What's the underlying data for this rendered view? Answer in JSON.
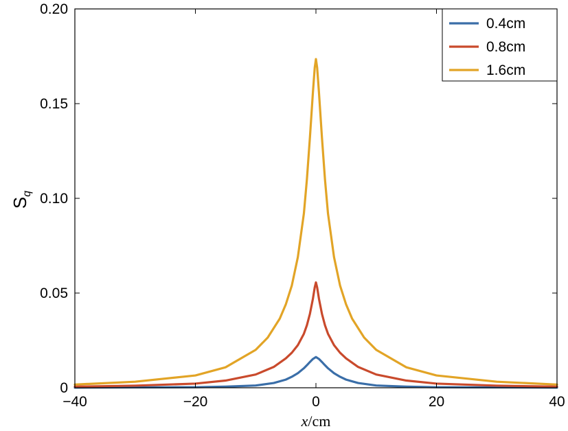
{
  "chart_data": {
    "type": "line",
    "title": "",
    "xlabel": {
      "var": "x",
      "rest": "/cm"
    },
    "ylabel": {
      "main": "S",
      "sub": "q"
    },
    "xlim": [
      -40,
      40
    ],
    "ylim": [
      0,
      0.2
    ],
    "xticks": [
      -40,
      -20,
      0,
      20,
      40
    ],
    "xtick_labels": [
      "−40",
      "−20",
      "0",
      "20",
      "40"
    ],
    "yticks": [
      0,
      0.05,
      0.1,
      0.15,
      0.2
    ],
    "ytick_labels": [
      "0",
      "0.05",
      "0.10",
      "0.15",
      "0.20"
    ],
    "grid": false,
    "legend_position": "top-right",
    "series": [
      {
        "name": "0.4cm",
        "color": "#3a6ea8",
        "x": [
          -40,
          -30,
          -20,
          -15,
          -10,
          -7,
          -5,
          -4,
          -3,
          -2,
          -1.5,
          -1,
          -0.5,
          0,
          0.5,
          1,
          1.5,
          2,
          3,
          4,
          5,
          7,
          10,
          15,
          20,
          30,
          40
        ],
        "y": [
          0.0001,
          0.0002,
          0.0003,
          0.0006,
          0.0012,
          0.0025,
          0.0043,
          0.0058,
          0.0077,
          0.0103,
          0.0119,
          0.0136,
          0.0152,
          0.0162,
          0.0152,
          0.0136,
          0.0119,
          0.0103,
          0.0077,
          0.0058,
          0.0043,
          0.0025,
          0.0012,
          0.0006,
          0.0003,
          0.0002,
          0.0001
        ]
      },
      {
        "name": "0.8cm",
        "color": "#c94a2c",
        "x": [
          -40,
          -30,
          -20,
          -15,
          -10,
          -7,
          -5,
          -4,
          -3,
          -2,
          -1.5,
          -1,
          -0.5,
          -0.2,
          0,
          0.2,
          0.5,
          1,
          1.5,
          2,
          3,
          4,
          5,
          7,
          10,
          15,
          20,
          30,
          40
        ],
        "y": [
          0.0006,
          0.0011,
          0.0022,
          0.0038,
          0.007,
          0.011,
          0.0155,
          0.0185,
          0.0225,
          0.0285,
          0.033,
          0.039,
          0.047,
          0.053,
          0.0556,
          0.053,
          0.047,
          0.039,
          0.033,
          0.0285,
          0.0225,
          0.0185,
          0.0155,
          0.011,
          0.007,
          0.0038,
          0.0022,
          0.0011,
          0.0006
        ]
      },
      {
        "name": "1.6cm",
        "color": "#e2a426",
        "x": [
          -40,
          -30,
          -20,
          -15,
          -10,
          -8,
          -6,
          -5,
          -4,
          -3,
          -2,
          -1.5,
          -1,
          -0.5,
          -0.2,
          0,
          0.2,
          0.5,
          1,
          1.5,
          2,
          3,
          4,
          5,
          6,
          8,
          10,
          15,
          20,
          30,
          40
        ],
        "y": [
          0.0017,
          0.0032,
          0.0065,
          0.0108,
          0.02,
          0.0265,
          0.0365,
          0.044,
          0.054,
          0.069,
          0.092,
          0.11,
          0.132,
          0.156,
          0.169,
          0.1735,
          0.169,
          0.156,
          0.132,
          0.11,
          0.092,
          0.069,
          0.054,
          0.044,
          0.0365,
          0.0265,
          0.02,
          0.0108,
          0.0065,
          0.0032,
          0.0017
        ]
      }
    ]
  }
}
